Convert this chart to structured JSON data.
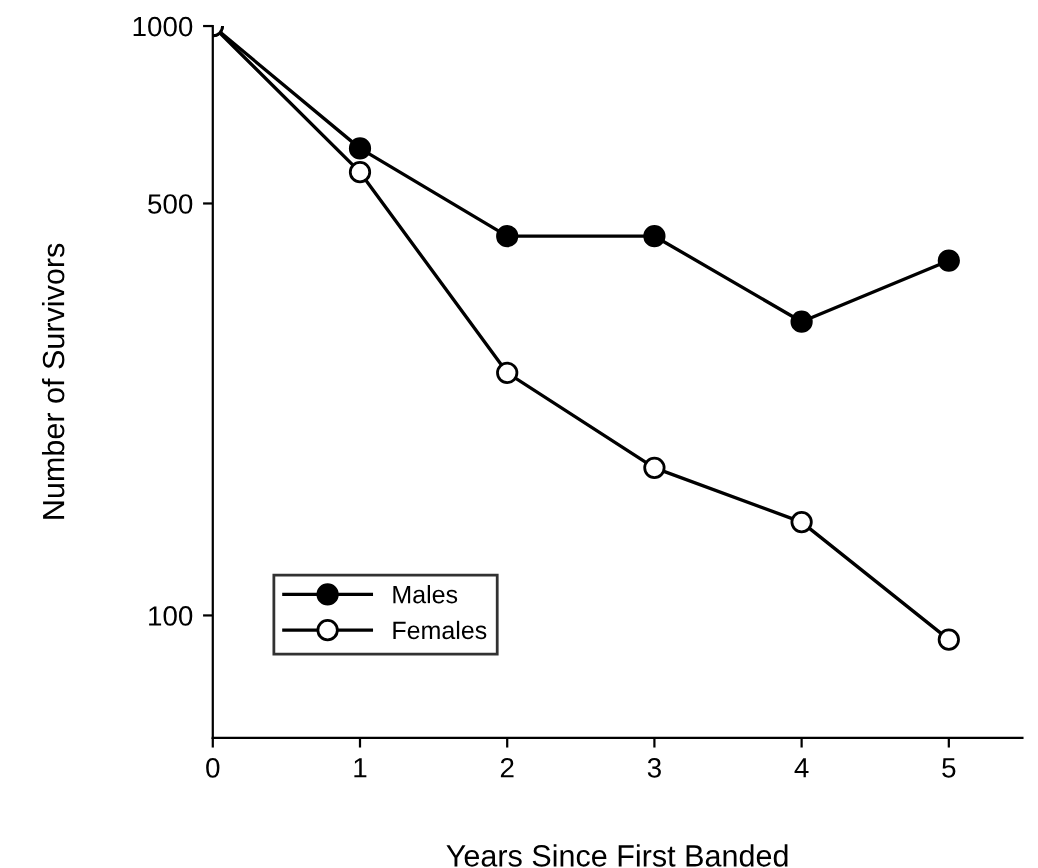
{
  "chart_data": {
    "type": "line",
    "xlabel": "Years Since First Banded",
    "ylabel": "Number of Survivors",
    "x": [
      0,
      1,
      2,
      3,
      4,
      5
    ],
    "series": [
      {
        "name": "Males",
        "color": "#000000",
        "values": [
          1000,
          620,
          440,
          440,
          315,
          400
        ]
      },
      {
        "name": "Females",
        "color": "#ffffff",
        "values": [
          1000,
          565,
          258,
          178,
          144,
          91
        ]
      }
    ],
    "log": "y",
    "xlim": [
      0,
      5.5
    ],
    "xticks": [
      0,
      1,
      2,
      3,
      4,
      5
    ],
    "ylim": [
      62,
      1000
    ],
    "yticks": [
      100,
      500,
      1000
    ],
    "legend": "bottom left",
    "marker": "circle",
    "line_style": "solid",
    "grid": false
  }
}
